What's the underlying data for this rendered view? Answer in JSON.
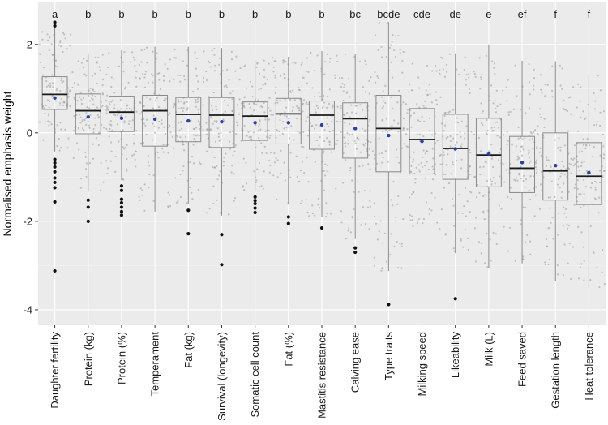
{
  "chart_data": {
    "type": "boxplot",
    "ylabel": "Normalised emphasis weight",
    "xlabel": "",
    "ylim": [
      -4.35,
      2.95
    ],
    "yticks": [
      -4,
      -2,
      0,
      2
    ],
    "grid": true,
    "legend": "none",
    "colors": {
      "panel": "#ebebeb",
      "grid": "#ffffff",
      "box": "#8a8a8a",
      "median": "#1a1a1a",
      "jitter": "#9a9a9a",
      "outlier": "#111111",
      "mean": "#2b3fa6"
    },
    "categories": [
      "Daughter fertility",
      "Protein (kg)",
      "Protein (%)",
      "Temperament",
      "Fat (kg)",
      "Survival (longevity)",
      "Somatic cell count",
      "Fat (%)",
      "Mastitis resistance",
      "Calving ease",
      "Type traits",
      "Milking speed",
      "Likeability",
      "Milk (L)",
      "Feed saved",
      "Gestation length",
      "Heat tolerance"
    ],
    "significance_groups": [
      "a",
      "b",
      "b",
      "b",
      "b",
      "b",
      "b",
      "b",
      "b",
      "bc",
      "bcde",
      "cde",
      "de",
      "e",
      "ef",
      "f",
      "f"
    ],
    "boxes": [
      {
        "whisker_low": -0.42,
        "q1": 0.53,
        "median": 0.87,
        "q3": 1.27,
        "whisker_high": 2.47,
        "mean": 0.79,
        "outliers": [
          2.5,
          2.42,
          -0.6,
          -0.68,
          -0.77,
          -0.88,
          -1.02,
          -1.12,
          -1.24,
          -1.56,
          -3.12
        ]
      },
      {
        "whisker_low": -1.33,
        "q1": -0.02,
        "median": 0.5,
        "q3": 0.88,
        "whisker_high": 1.8,
        "mean": 0.36,
        "outliers": [
          -1.52,
          -1.68,
          -2.0
        ]
      },
      {
        "whisker_low": -1.07,
        "q1": 0.03,
        "median": 0.47,
        "q3": 0.83,
        "whisker_high": 1.87,
        "mean": 0.33,
        "outliers": [
          -1.2,
          -1.3,
          -1.5,
          -1.58,
          -1.68,
          -1.78,
          -1.86
        ]
      },
      {
        "whisker_low": -1.78,
        "q1": -0.3,
        "median": 0.5,
        "q3": 0.85,
        "whisker_high": 1.95,
        "mean": 0.31,
        "outliers": []
      },
      {
        "whisker_low": -1.6,
        "q1": -0.2,
        "median": 0.42,
        "q3": 0.8,
        "whisker_high": 1.95,
        "mean": 0.27,
        "outliers": [
          -1.75,
          -2.28
        ]
      },
      {
        "whisker_low": -1.87,
        "q1": -0.33,
        "median": 0.4,
        "q3": 0.8,
        "whisker_high": 1.92,
        "mean": 0.25,
        "outliers": [
          -2.3,
          -2.98
        ]
      },
      {
        "whisker_low": -1.33,
        "q1": -0.17,
        "median": 0.38,
        "q3": 0.7,
        "whisker_high": 1.65,
        "mean": 0.23,
        "outliers": [
          -1.45,
          -1.53,
          -1.6,
          -1.7,
          -1.8
        ]
      },
      {
        "whisker_low": -1.6,
        "q1": -0.25,
        "median": 0.43,
        "q3": 0.78,
        "whisker_high": 1.72,
        "mean": 0.23,
        "outliers": [
          -1.9,
          -2.05
        ]
      },
      {
        "whisker_low": -1.9,
        "q1": -0.37,
        "median": 0.4,
        "q3": 0.72,
        "whisker_high": 1.85,
        "mean": 0.18,
        "outliers": [
          -2.15
        ]
      },
      {
        "whisker_low": -2.4,
        "q1": -0.57,
        "median": 0.32,
        "q3": 0.68,
        "whisker_high": 1.78,
        "mean": 0.1,
        "outliers": [
          -2.6,
          -2.7
        ]
      },
      {
        "whisker_low": -3.12,
        "q1": -0.88,
        "median": 0.1,
        "q3": 0.85,
        "whisker_high": 2.5,
        "mean": -0.06,
        "outliers": [
          -3.88
        ]
      },
      {
        "whisker_low": -2.25,
        "q1": -0.93,
        "median": -0.15,
        "q3": 0.55,
        "whisker_high": 1.57,
        "mean": -0.19,
        "outliers": []
      },
      {
        "whisker_low": -2.72,
        "q1": -1.05,
        "median": -0.35,
        "q3": 0.42,
        "whisker_high": 1.8,
        "mean": -0.36,
        "outliers": [
          -3.75
        ]
      },
      {
        "whisker_low": -3.05,
        "q1": -1.22,
        "median": -0.5,
        "q3": 0.33,
        "whisker_high": 2.0,
        "mean": -0.48,
        "outliers": []
      },
      {
        "whisker_low": -2.95,
        "q1": -1.35,
        "median": -0.8,
        "q3": -0.08,
        "whisker_high": 1.63,
        "mean": -0.67,
        "outliers": []
      },
      {
        "whisker_low": -3.35,
        "q1": -1.52,
        "median": -0.86,
        "q3": 0.0,
        "whisker_high": 1.62,
        "mean": -0.74,
        "outliers": []
      },
      {
        "whisker_low": -3.5,
        "q1": -1.62,
        "median": -0.98,
        "q3": -0.22,
        "whisker_high": 1.33,
        "mean": -0.9,
        "outliers": []
      }
    ]
  }
}
